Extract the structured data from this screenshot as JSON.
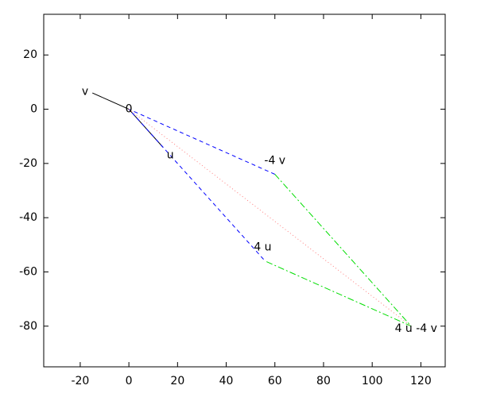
{
  "chart_data": {
    "type": "line",
    "xlim": [
      -35,
      130
    ],
    "ylim": [
      -95,
      35
    ],
    "xticks": [
      -20,
      0,
      20,
      40,
      60,
      80,
      100,
      120
    ],
    "yticks": [
      20,
      0,
      -20,
      -40,
      -60,
      -80
    ],
    "series": [
      {
        "color": "#000000",
        "dash": "solid",
        "x": [
          0,
          -15
        ],
        "values": [
          0,
          6
        ]
      },
      {
        "color": "#000000",
        "dash": "solid",
        "x": [
          0,
          14
        ],
        "values": [
          0,
          -14
        ]
      },
      {
        "color": "#0000ff",
        "dash": "dashed",
        "x": [
          60,
          0,
          56
        ],
        "values": [
          -24,
          0,
          -56
        ]
      },
      {
        "color": "#00dd00",
        "dash": "dashdot",
        "x": [
          60,
          116,
          56
        ],
        "values": [
          -24,
          -80,
          -56
        ]
      },
      {
        "color": "#ff8080",
        "dash": "dotted",
        "x": [
          0,
          116
        ],
        "values": [
          0,
          -80
        ]
      }
    ],
    "annotations": [
      {
        "text": "v",
        "x": -18,
        "y": 6.5
      },
      {
        "text": "0",
        "x": 0,
        "y": 0
      },
      {
        "text": "u",
        "x": 17,
        "y": -17
      },
      {
        "text": "-4 v",
        "x": 60,
        "y": -19
      },
      {
        "text": "4 u",
        "x": 55,
        "y": -51
      },
      {
        "text": "4 u -4 v",
        "x": 118,
        "y": -81
      }
    ]
  }
}
